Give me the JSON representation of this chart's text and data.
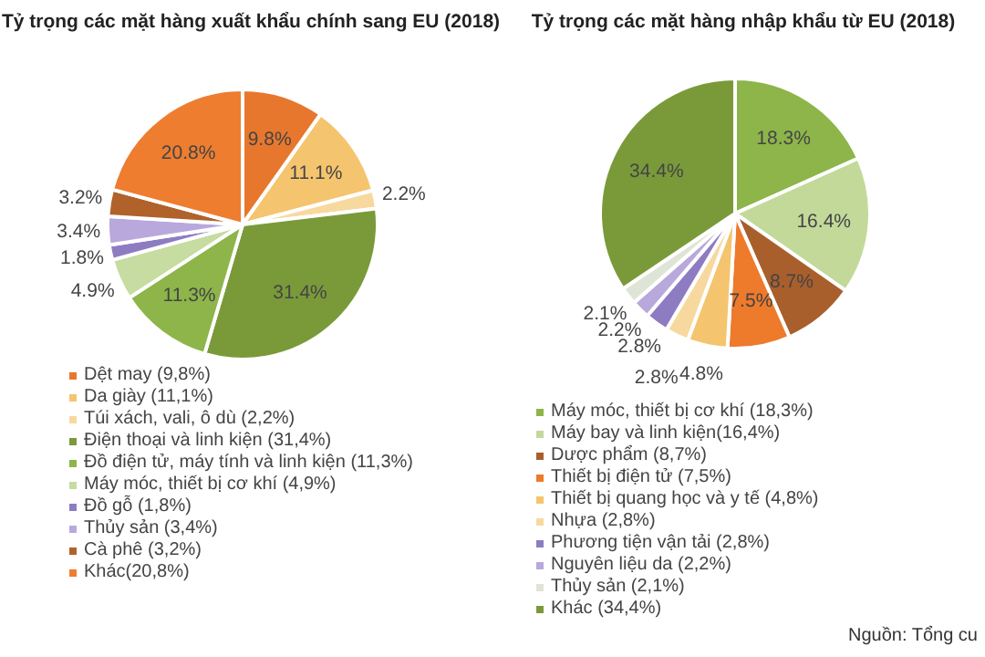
{
  "chart_data": [
    {
      "type": "pie",
      "title": "Tỷ trọng các mặt hàng xuất khẩu chính sang EU (2018)",
      "categories": [
        "Dệt may (9,8%)",
        "Da giày (11,1%)",
        "Túi xách, vali, ô dù (2,2%)",
        "Điện thoại và linh kiện (31,4%)",
        "Đồ điện tử, máy tính và linh kiện (11,3%)",
        "Máy móc, thiết bị cơ khí  (4,9%)",
        "Đồ gỗ (1,8%)",
        "Thủy sản (3,4%)",
        "Cà phê (3,2%)",
        "Khác(20,8%)"
      ],
      "values": [
        9.8,
        11.1,
        2.2,
        31.4,
        11.3,
        4.9,
        1.8,
        3.4,
        3.2,
        20.8
      ],
      "value_labels": [
        "9.8%",
        "11.1%",
        "2.2%",
        "31.4%",
        "11.3%",
        "4.9%",
        "1.8%",
        "3.4%",
        "3.2%",
        "20.8%"
      ],
      "colors": [
        "#e8772e",
        "#f5c46e",
        "#f7d9a0",
        "#7a9a3a",
        "#8db54a",
        "#c6dca0",
        "#8e7cc3",
        "#b9a8dc",
        "#b0622a",
        "#ee7d30"
      ],
      "legend": "bottom"
    },
    {
      "type": "pie",
      "title": "Tỷ trọng các mặt hàng nhập khẩu từ EU (2018)",
      "categories": [
        "Máy móc, thiết bị cơ khí (18,3%)",
        "Máy bay và linh kiện(16,4%)",
        "Dược phẩm (8,7%)",
        "Thiết bị điện tử (7,5%)",
        "Thiết bị quang học và y tế (4,8%)",
        "Nhựa (2,8%)",
        "Phương tiện vận tải (2,8%)",
        "Nguyên liệu da (2,2%)",
        "Thủy sản (2,1%)",
        "Khác (34,4%)"
      ],
      "values": [
        18.3,
        16.4,
        8.7,
        7.5,
        4.8,
        2.8,
        2.8,
        2.2,
        2.1,
        34.4
      ],
      "value_labels": [
        "18.3%",
        "16.4%",
        "8.7%",
        "7.5%",
        "4.8%",
        "2.8%",
        "2.8%",
        "2.2%",
        "2.1%",
        "34.4%"
      ],
      "colors": [
        "#8db54a",
        "#c3d99a",
        "#a95f2c",
        "#ee7a2c",
        "#f5c46e",
        "#f7d9a0",
        "#8e7cc3",
        "#b9a8dc",
        "#dfe5d6",
        "#7a9a3a"
      ],
      "legend": "bottom",
      "annotations": [
        "Nguồn: Tổng cu"
      ]
    }
  ]
}
